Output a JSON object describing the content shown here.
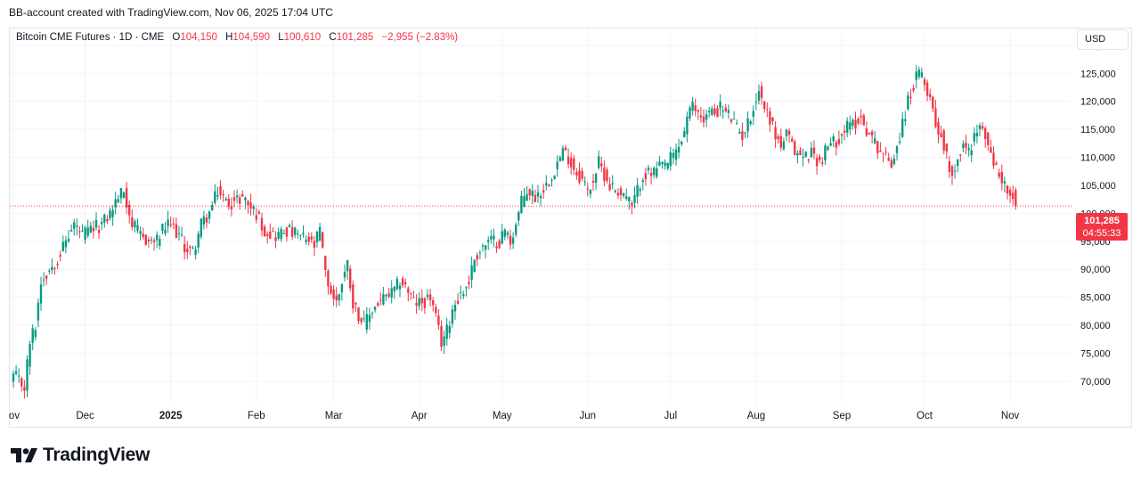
{
  "attribution": "BB-account created with TradingView.com, Nov 06, 2025 17:04 UTC",
  "legend": {
    "symbol": "Bitcoin CME Futures · 1D · CME",
    "open_label": "O",
    "open": "104,150",
    "high_label": "H",
    "high": "104,590",
    "low_label": "L",
    "low": "100,610",
    "close_label": "C",
    "close": "101,285",
    "change": "−2,955 (−2.83%)"
  },
  "currency": "USD",
  "last_price": {
    "price": "101,285",
    "countdown": "04:55:33"
  },
  "brand": {
    "name": "TradingView"
  },
  "colors": {
    "up": "#089981",
    "down": "#f23645",
    "grid": "#f0f3fa",
    "text": "#131722",
    "price_line": "#f23645"
  },
  "chart_data": {
    "type": "candlestick",
    "ylim": [
      66000,
      133000
    ],
    "y_ticks": [
      "70,000",
      "75,000",
      "80,000",
      "85,000",
      "90,000",
      "95,000",
      "100,000",
      "105,000",
      "110,000",
      "115,000",
      "120,000",
      "125,000",
      "130,000"
    ],
    "y_tick_values": [
      70000,
      75000,
      80000,
      85000,
      90000,
      95000,
      100000,
      105000,
      110000,
      115000,
      120000,
      125000,
      130000
    ],
    "x_labels": [
      {
        "label": "ov",
        "day": 0
      },
      {
        "label": "Dec",
        "day": 26
      },
      {
        "label": "2025",
        "day": 57
      },
      {
        "label": "Feb",
        "day": 88
      },
      {
        "label": "Mar",
        "day": 116
      },
      {
        "label": "Apr",
        "day": 147
      },
      {
        "label": "May",
        "day": 177
      },
      {
        "label": "Jun",
        "day": 208
      },
      {
        "label": "Jul",
        "day": 238
      },
      {
        "label": "Aug",
        "day": 269
      },
      {
        "label": "Sep",
        "day": 300
      },
      {
        "label": "Oct",
        "day": 330
      },
      {
        "label": "Nov",
        "day": 361
      }
    ],
    "close_path": [
      [
        0,
        71000
      ],
      [
        4,
        69000
      ],
      [
        6,
        77000
      ],
      [
        8,
        80000
      ],
      [
        10,
        88000
      ],
      [
        13,
        90000
      ],
      [
        16,
        92000
      ],
      [
        19,
        95000
      ],
      [
        22,
        98000
      ],
      [
        25,
        96000
      ],
      [
        28,
        97000
      ],
      [
        32,
        98000
      ],
      [
        35,
        100000
      ],
      [
        38,
        103000
      ],
      [
        40,
        104000
      ],
      [
        43,
        98000
      ],
      [
        46,
        96000
      ],
      [
        49,
        95000
      ],
      [
        52,
        95000
      ],
      [
        54,
        97000
      ],
      [
        57,
        98000
      ],
      [
        60,
        96000
      ],
      [
        62,
        94000
      ],
      [
        65,
        93000
      ],
      [
        68,
        98000
      ],
      [
        71,
        100000
      ],
      [
        74,
        104000
      ],
      [
        77,
        102000
      ],
      [
        80,
        102000
      ],
      [
        83,
        103000
      ],
      [
        86,
        101000
      ],
      [
        88,
        100000
      ],
      [
        91,
        97000
      ],
      [
        95,
        96000
      ],
      [
        99,
        97000
      ],
      [
        103,
        96000
      ],
      [
        107,
        95000
      ],
      [
        109,
        94000
      ],
      [
        111,
        97000
      ],
      [
        113,
        89000
      ],
      [
        115,
        86000
      ],
      [
        117,
        84000
      ],
      [
        119,
        88000
      ],
      [
        121,
        91000
      ],
      [
        123,
        84000
      ],
      [
        125,
        82000
      ],
      [
        127,
        80000
      ],
      [
        129,
        82000
      ],
      [
        132,
        84000
      ],
      [
        135,
        85000
      ],
      [
        138,
        86000
      ],
      [
        140,
        88000
      ],
      [
        142,
        87000
      ],
      [
        145,
        84000
      ],
      [
        148,
        84000
      ],
      [
        151,
        85000
      ],
      [
        153,
        81000
      ],
      [
        155,
        77000
      ],
      [
        157,
        79000
      ],
      [
        159,
        83000
      ],
      [
        161,
        85000
      ],
      [
        163,
        86000
      ],
      [
        165,
        88000
      ],
      [
        167,
        92000
      ],
      [
        170,
        94000
      ],
      [
        173,
        95000
      ],
      [
        176,
        95000
      ],
      [
        178,
        97000
      ],
      [
        180,
        95000
      ],
      [
        182,
        98000
      ],
      [
        184,
        102000
      ],
      [
        186,
        104000
      ],
      [
        189,
        103000
      ],
      [
        191,
        104000
      ],
      [
        193,
        105000
      ],
      [
        195,
        107000
      ],
      [
        197,
        109000
      ],
      [
        199,
        111000
      ],
      [
        201,
        110000
      ],
      [
        203,
        108000
      ],
      [
        206,
        106000
      ],
      [
        208,
        104000
      ],
      [
        210,
        106000
      ],
      [
        212,
        109000
      ],
      [
        214,
        107000
      ],
      [
        216,
        105000
      ],
      [
        219,
        104000
      ],
      [
        222,
        103000
      ],
      [
        224,
        101000
      ],
      [
        226,
        104000
      ],
      [
        228,
        107000
      ],
      [
        231,
        107000
      ],
      [
        234,
        108000
      ],
      [
        237,
        109000
      ],
      [
        240,
        111000
      ],
      [
        242,
        113000
      ],
      [
        244,
        117000
      ],
      [
        246,
        119000
      ],
      [
        248,
        118000
      ],
      [
        250,
        117000
      ],
      [
        252,
        118000
      ],
      [
        254,
        118000
      ],
      [
        256,
        119000
      ],
      [
        258,
        118000
      ],
      [
        260,
        117000
      ],
      [
        262,
        115000
      ],
      [
        264,
        114000
      ],
      [
        266,
        116000
      ],
      [
        268,
        119000
      ],
      [
        270,
        122000
      ],
      [
        272,
        119000
      ],
      [
        274,
        117000
      ],
      [
        276,
        114000
      ],
      [
        278,
        112000
      ],
      [
        280,
        114000
      ],
      [
        283,
        111000
      ],
      [
        286,
        110000
      ],
      [
        289,
        111000
      ],
      [
        292,
        109000
      ],
      [
        295,
        112000
      ],
      [
        298,
        113000
      ],
      [
        301,
        115000
      ],
      [
        304,
        116000
      ],
      [
        307,
        117000
      ],
      [
        310,
        114000
      ],
      [
        313,
        112000
      ],
      [
        316,
        110000
      ],
      [
        318,
        109000
      ],
      [
        320,
        112000
      ],
      [
        322,
        116000
      ],
      [
        324,
        120000
      ],
      [
        326,
        123000
      ],
      [
        328,
        125000
      ],
      [
        330,
        123000
      ],
      [
        332,
        121000
      ],
      [
        334,
        116000
      ],
      [
        336,
        114000
      ],
      [
        338,
        110000
      ],
      [
        340,
        107000
      ],
      [
        342,
        110000
      ],
      [
        344,
        112000
      ],
      [
        346,
        111000
      ],
      [
        348,
        114000
      ],
      [
        350,
        115000
      ],
      [
        352,
        114000
      ],
      [
        354,
        110000
      ],
      [
        356,
        108000
      ],
      [
        358,
        106000
      ],
      [
        360,
        104000
      ],
      [
        362,
        101500
      ],
      [
        363,
        101285
      ]
    ]
  }
}
